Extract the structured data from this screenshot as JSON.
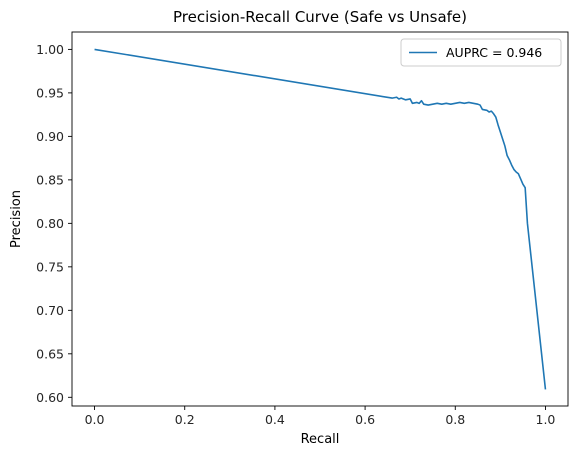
{
  "chart_data": {
    "type": "line",
    "title": "Precision-Recall Curve (Safe vs Unsafe)",
    "xlabel": "Recall",
    "ylabel": "Precision",
    "xlim": [
      -0.05,
      1.05
    ],
    "ylim": [
      0.59,
      1.02
    ],
    "xticks": [
      0.0,
      0.2,
      0.4,
      0.6,
      0.8,
      1.0
    ],
    "xtick_labels": [
      "0.0",
      "0.2",
      "0.4",
      "0.6",
      "0.8",
      "1.0"
    ],
    "yticks": [
      0.6,
      0.65,
      0.7,
      0.75,
      0.8,
      0.85,
      0.9,
      0.95,
      1.0
    ],
    "ytick_labels": [
      "0.60",
      "0.65",
      "0.70",
      "0.75",
      "0.80",
      "0.85",
      "0.90",
      "0.95",
      "1.00"
    ],
    "grid": false,
    "legend_position": "upper right",
    "series": [
      {
        "name": "AUPRC = 0.946",
        "color": "#1f77b4",
        "points": [
          [
            0.0,
            1.0
          ],
          [
            0.66,
            0.944
          ],
          [
            0.67,
            0.945
          ],
          [
            0.675,
            0.943
          ],
          [
            0.68,
            0.944
          ],
          [
            0.69,
            0.942
          ],
          [
            0.7,
            0.943
          ],
          [
            0.705,
            0.938
          ],
          [
            0.715,
            0.939
          ],
          [
            0.72,
            0.938
          ],
          [
            0.725,
            0.941
          ],
          [
            0.73,
            0.937
          ],
          [
            0.74,
            0.936
          ],
          [
            0.75,
            0.937
          ],
          [
            0.76,
            0.938
          ],
          [
            0.77,
            0.937
          ],
          [
            0.78,
            0.938
          ],
          [
            0.79,
            0.937
          ],
          [
            0.8,
            0.938
          ],
          [
            0.81,
            0.939
          ],
          [
            0.82,
            0.938
          ],
          [
            0.83,
            0.939
          ],
          [
            0.84,
            0.938
          ],
          [
            0.85,
            0.937
          ],
          [
            0.855,
            0.936
          ],
          [
            0.86,
            0.931
          ],
          [
            0.87,
            0.93
          ],
          [
            0.875,
            0.928
          ],
          [
            0.88,
            0.929
          ],
          [
            0.885,
            0.926
          ],
          [
            0.89,
            0.922
          ],
          [
            0.895,
            0.913
          ],
          [
            0.9,
            0.905
          ],
          [
            0.905,
            0.897
          ],
          [
            0.91,
            0.889
          ],
          [
            0.915,
            0.878
          ],
          [
            0.92,
            0.873
          ],
          [
            0.925,
            0.867
          ],
          [
            0.93,
            0.862
          ],
          [
            0.935,
            0.859
          ],
          [
            0.94,
            0.857
          ],
          [
            0.945,
            0.851
          ],
          [
            0.95,
            0.845
          ],
          [
            0.955,
            0.841
          ],
          [
            0.96,
            0.8
          ],
          [
            1.0,
            0.609
          ]
        ]
      }
    ]
  }
}
